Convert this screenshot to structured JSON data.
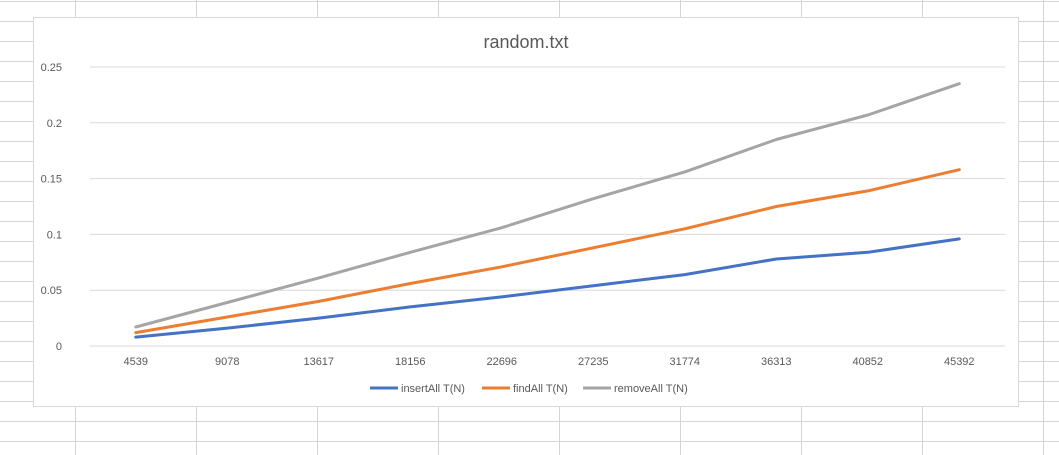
{
  "chart_data": {
    "type": "line",
    "title": "random.txt",
    "categories": [
      "4539",
      "9078",
      "13617",
      "18156",
      "22696",
      "27235",
      "31774",
      "36313",
      "40852",
      "45392"
    ],
    "ylim": [
      0,
      0.25
    ],
    "yticks": [
      "0",
      "0.05",
      "0.1",
      "0.15",
      "0.2",
      "0.25"
    ],
    "grid": true,
    "legend_position": "bottom",
    "series": [
      {
        "name": "insertAll T(N)",
        "color": "#4472c4",
        "values": [
          0.008,
          0.016,
          0.025,
          0.035,
          0.044,
          0.054,
          0.064,
          0.078,
          0.084,
          0.096
        ]
      },
      {
        "name": "findAll T(N)",
        "color": "#ed7d31",
        "values": [
          0.012,
          0.026,
          0.04,
          0.056,
          0.071,
          0.088,
          0.105,
          0.125,
          0.139,
          0.158
        ]
      },
      {
        "name": "removeAll T(N)",
        "color": "#a5a5a5",
        "values": [
          0.017,
          0.039,
          0.061,
          0.084,
          0.106,
          0.132,
          0.156,
          0.185,
          0.207,
          0.235
        ]
      }
    ]
  }
}
